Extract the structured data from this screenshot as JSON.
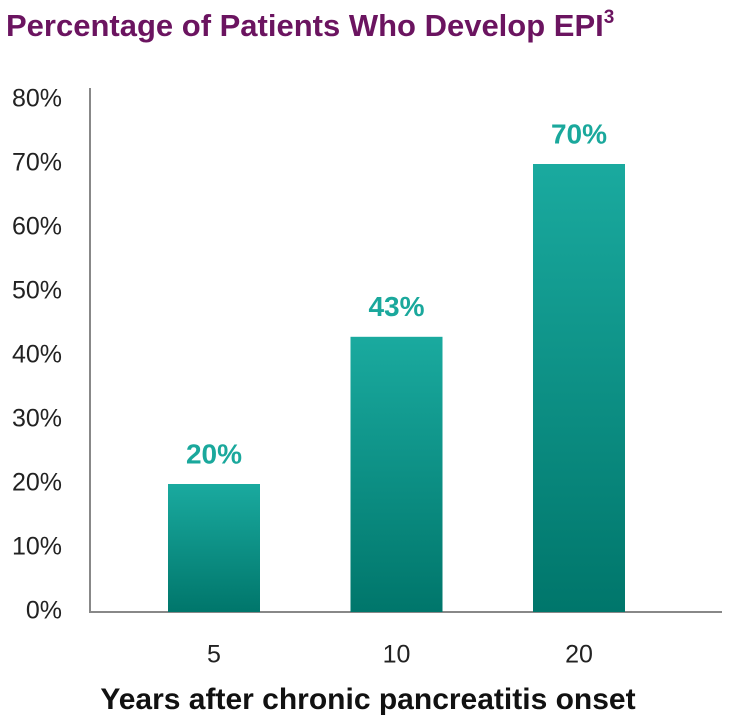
{
  "chart_data": {
    "type": "bar",
    "title": "Percentage of Patients Who Develop EPI",
    "title_superscript": "3",
    "x_label": "Years after chronic pancreatitis onset",
    "categories": [
      "5",
      "10",
      "20"
    ],
    "values": [
      20,
      43,
      70
    ],
    "value_labels": [
      "20%",
      "43%",
      "70%"
    ],
    "color": "#13a094",
    "ylim": [
      0,
      80
    ],
    "yticks": [
      {
        "value": 0,
        "label": "0%"
      },
      {
        "value": 10,
        "label": "10%"
      },
      {
        "value": 20,
        "label": "20%"
      },
      {
        "value": 30,
        "label": "30%"
      },
      {
        "value": 40,
        "label": "40%"
      },
      {
        "value": 50,
        "label": "50%"
      },
      {
        "value": 60,
        "label": "60%"
      },
      {
        "value": 70,
        "label": "70%"
      },
      {
        "value": 80,
        "label": "80%"
      }
    ],
    "grid": false
  }
}
